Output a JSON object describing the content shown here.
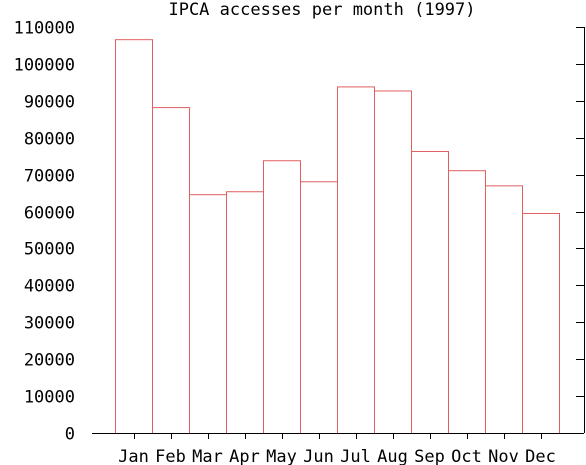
{
  "chart_data": {
    "type": "bar",
    "title": "IPCA accesses per month (1997)",
    "xlabel": "",
    "ylabel": "",
    "categories": [
      "Jan",
      "Feb",
      "Mar",
      "Apr",
      "May",
      "Jun",
      "Jul",
      "Aug",
      "Sep",
      "Oct",
      "Nov",
      "Dec"
    ],
    "values": [
      106700,
      88300,
      64700,
      65500,
      73900,
      68200,
      93900,
      92800,
      76400,
      71200,
      67100,
      59600
    ],
    "ylim": [
      0,
      110000
    ],
    "yticks": [
      "0",
      "10000",
      "20000",
      "30000",
      "40000",
      "50000",
      "60000",
      "70000",
      "80000",
      "90000",
      "100000",
      "110000"
    ],
    "bar_color": "#e06060",
    "grid": false,
    "legend": "none"
  }
}
